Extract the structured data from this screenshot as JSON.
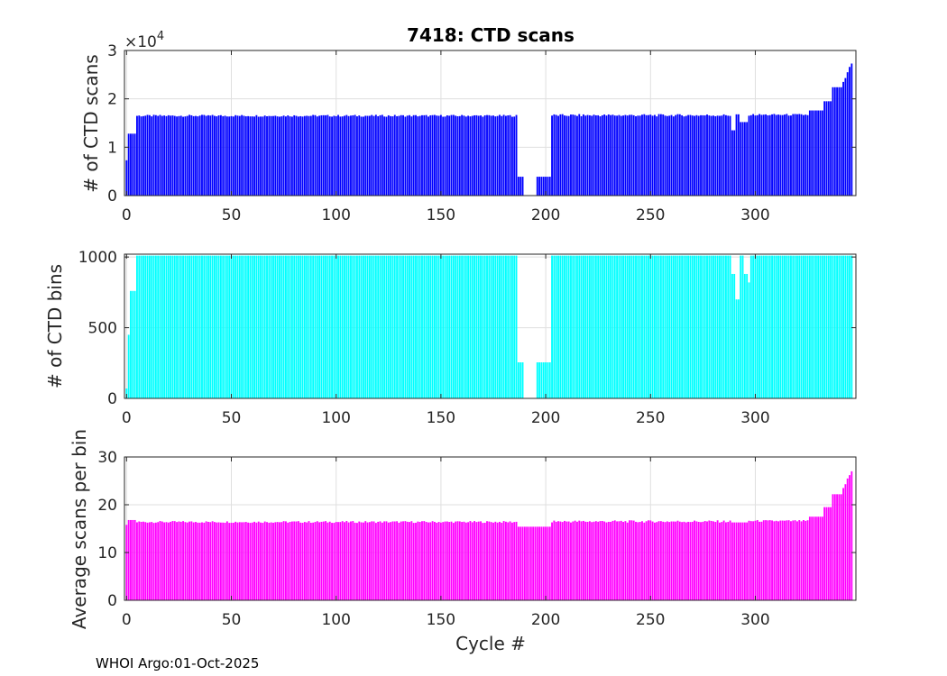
{
  "figure": {
    "title": "7418: CTD scans",
    "xlabel": "Cycle #",
    "footer": "WHOI Argo:01-Oct-2025"
  },
  "chart_data": [
    {
      "type": "bar",
      "ylabel": "# of CTD scans",
      "multiplier_label": "×10",
      "multiplier_exp": "4",
      "color": "#0000ff",
      "xlim": [
        -1,
        348
      ],
      "ylim": [
        0,
        30000
      ],
      "xticks": [
        0,
        50,
        100,
        150,
        200,
        250,
        300
      ],
      "yticks": [
        0,
        10000,
        20000,
        30000
      ],
      "ytick_labels": [
        "0",
        "1",
        "2",
        "3"
      ],
      "grid": true,
      "segments": [
        {
          "x0": 0,
          "x1": 0,
          "y": 7300
        },
        {
          "x0": 1,
          "x1": 4,
          "y": 12800
        },
        {
          "x0": 5,
          "x1": 186,
          "y": 16500,
          "jitter": 200
        },
        {
          "x0": 187,
          "x1": 201,
          "y": 3900,
          "gaps": [
            190,
            191,
            192,
            193,
            194,
            195
          ]
        },
        {
          "x0": 202,
          "x1": 202,
          "y": 3900
        },
        {
          "x0": 203,
          "x1": 288,
          "y": 16600,
          "jitter": 250
        },
        {
          "x0": 289,
          "x1": 290,
          "y": 13500
        },
        {
          "x0": 291,
          "x1": 292,
          "y": 16800
        },
        {
          "x0": 293,
          "x1": 296,
          "y": 15200
        },
        {
          "x0": 297,
          "x1": 325,
          "y": 16700,
          "jitter": 200
        },
        {
          "x0": 326,
          "x1": 332,
          "y": 17600
        },
        {
          "x0": 333,
          "x1": 336,
          "y": 19500
        },
        {
          "x0": 337,
          "x1": 341,
          "y": 22400
        },
        {
          "x0": 342,
          "x1": 342,
          "y": 23500
        },
        {
          "x0": 343,
          "x1": 343,
          "y": 24300
        },
        {
          "x0": 344,
          "x1": 344,
          "y": 25500
        },
        {
          "x0": 345,
          "x1": 345,
          "y": 26600
        },
        {
          "x0": 346,
          "x1": 346,
          "y": 27300
        }
      ]
    },
    {
      "type": "bar",
      "ylabel": "# of CTD bins",
      "color": "#00ffff",
      "xlim": [
        -1,
        348
      ],
      "ylim": [
        0,
        1020
      ],
      "xticks": [
        0,
        50,
        100,
        150,
        200,
        250,
        300
      ],
      "yticks": [
        0,
        500,
        1000
      ],
      "ytick_labels": [
        "0",
        "500",
        "1000"
      ],
      "grid": true,
      "segments": [
        {
          "x0": 0,
          "x1": 0,
          "y": 70
        },
        {
          "x0": 1,
          "x1": 1,
          "y": 450
        },
        {
          "x0": 2,
          "x1": 4,
          "y": 760
        },
        {
          "x0": 5,
          "x1": 186,
          "y": 1010
        },
        {
          "x0": 187,
          "x1": 202,
          "y": 255,
          "gaps": [
            190,
            191,
            192,
            193,
            194,
            195
          ]
        },
        {
          "x0": 203,
          "x1": 288,
          "y": 1010
        },
        {
          "x0": 289,
          "x1": 290,
          "y": 880
        },
        {
          "x0": 291,
          "x1": 292,
          "y": 700
        },
        {
          "x0": 293,
          "x1": 294,
          "y": 1010
        },
        {
          "x0": 295,
          "x1": 296,
          "y": 880
        },
        {
          "x0": 297,
          "x1": 297,
          "y": 820
        },
        {
          "x0": 298,
          "x1": 346,
          "y": 1010
        }
      ]
    },
    {
      "type": "bar",
      "ylabel": "Average scans per bin",
      "color": "#ff00ff",
      "xlim": [
        -1,
        348
      ],
      "ylim": [
        0,
        30
      ],
      "xticks": [
        0,
        50,
        100,
        150,
        200,
        250,
        300
      ],
      "yticks": [
        0,
        10,
        20,
        30
      ],
      "ytick_labels": [
        "0",
        "10",
        "20",
        "30"
      ],
      "grid": true,
      "segments": [
        {
          "x0": 0,
          "x1": 0,
          "y": 15.8
        },
        {
          "x0": 1,
          "x1": 4,
          "y": 16.8
        },
        {
          "x0": 5,
          "x1": 186,
          "y": 16.4,
          "jitter": 0.2
        },
        {
          "x0": 187,
          "x1": 202,
          "y": 15.4
        },
        {
          "x0": 203,
          "x1": 288,
          "y": 16.5,
          "jitter": 0.25
        },
        {
          "x0": 289,
          "x1": 296,
          "y": 16.3
        },
        {
          "x0": 297,
          "x1": 325,
          "y": 16.6,
          "jitter": 0.2
        },
        {
          "x0": 326,
          "x1": 332,
          "y": 17.5
        },
        {
          "x0": 333,
          "x1": 336,
          "y": 19.5
        },
        {
          "x0": 337,
          "x1": 341,
          "y": 22.2
        },
        {
          "x0": 342,
          "x1": 342,
          "y": 23.5
        },
        {
          "x0": 343,
          "x1": 343,
          "y": 24.3
        },
        {
          "x0": 344,
          "x1": 344,
          "y": 25.5
        },
        {
          "x0": 345,
          "x1": 345,
          "y": 26.2
        },
        {
          "x0": 346,
          "x1": 346,
          "y": 27.0
        }
      ]
    }
  ]
}
